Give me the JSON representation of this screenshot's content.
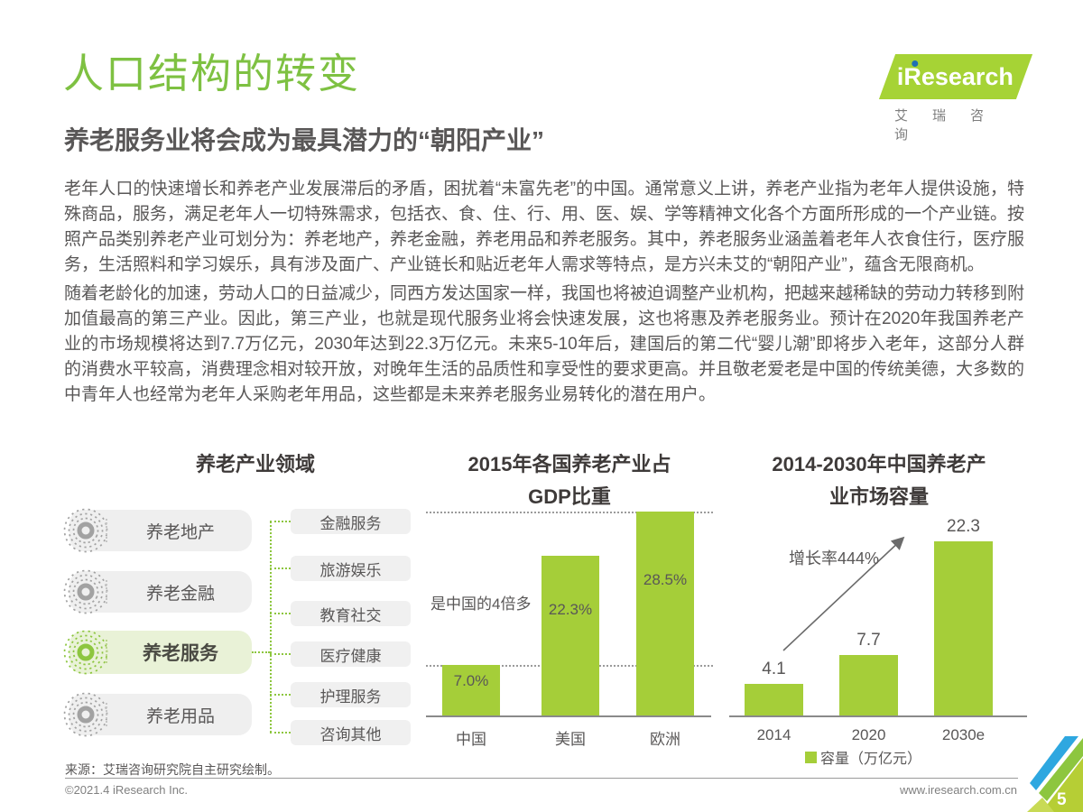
{
  "page": {
    "title": "人口结构的转变",
    "subtitle": "养老服务业将会成为最具潜力的“朝阳产业”",
    "paragraphs": [
      "老年人口的快速增长和养老产业发展滞后的矛盾，困扰着“未富先老”的中国。通常意义上讲，养老产业指为老年人提供设施，特殊商品，服务，满足老年人一切特殊需求，包括衣、食、住、行、用、医、娱、学等精神文化各个方面所形成的一个产业链。按照产品类别养老产业可划分为：养老地产，养老金融，养老用品和养老服务。其中，养老服务业涵盖着老年人衣食住行，医疗服务，生活照料和学习娱乐，具有涉及面广、产业链长和贴近老年人需求等特点，是方兴未艾的“朝阳产业”，蕴含无限商机。",
      "随着老龄化的加速，劳动人口的日益减少，同西方发达国家一样，我国也将被迫调整产业机构，把越来越稀缺的劳动力转移到附加值最高的第三产业。因此，第三产业，也就是现代服务业将会快速发展，这也将惠及养老服务业。预计在2020年我国养老产业的市场规模将达到7.7万亿元，2030年达到22.3万亿元。未来5-10年后，建国后的第二代“婴儿潮”即将步入老年，这部分人群的消费水平较高，消费理念相对较开放，对晚年生活的品质性和享受性的要求更高。并且敬老爱老是中国的传统美德，大多数的中青年人也经常为老年人采购老年用品，这些都是未来养老服务业易转化的潜在用户。"
    ],
    "logo": {
      "brand": "iResearch",
      "brand_cn": "艾瑞咨询"
    },
    "footer": {
      "source": "来源：艾瑞咨询研究院自主研究绘制。",
      "copyright": "©2021.4 iResearch Inc.",
      "website": "www.iresearch.com.cn",
      "page_number": "5"
    }
  },
  "diagram": {
    "title": "养老产业领域",
    "categories": [
      {
        "label": "养老地产",
        "highlighted": false
      },
      {
        "label": "养老金融",
        "highlighted": false
      },
      {
        "label": "养老服务",
        "highlighted": true
      },
      {
        "label": "养老用品",
        "highlighted": false
      }
    ],
    "subcategories": [
      "金融服务",
      "旅游娱乐",
      "教育社交",
      "医疗健康",
      "护理服务",
      "咨询其他"
    ]
  },
  "chart_data": [
    {
      "type": "bar",
      "title": "2015年各国养老产业占GDP比重",
      "title_lines": [
        "2015年各国养老产业占",
        "GDP比重"
      ],
      "categories": [
        "中国",
        "美国",
        "欧洲"
      ],
      "values": [
        7.0,
        22.3,
        28.5
      ],
      "value_labels": [
        "7.0%",
        "22.3%",
        "28.5%"
      ],
      "annotation": "是中国的4倍多",
      "unit": "%",
      "ylim": [
        0,
        28.5
      ],
      "gridlines_at": [
        7.0,
        28.5
      ],
      "bar_color": "#a5ce39"
    },
    {
      "type": "bar",
      "title": "2014-2030年中国养老产业市场容量",
      "title_lines": [
        "2014-2030年中国养老产",
        "业市场容量"
      ],
      "categories": [
        "2014",
        "2020",
        "2030e"
      ],
      "values": [
        4.1,
        7.7,
        22.3
      ],
      "value_labels": [
        "4.1",
        "7.7",
        "22.3"
      ],
      "annotation": "增长率444%",
      "legend": "容量（万亿元）",
      "unit": "万亿元",
      "ylim": [
        0,
        23
      ],
      "bar_color": "#a5ce39"
    }
  ],
  "colors": {
    "title_green": "#7ec142",
    "logo_green": "#a6d335",
    "bar_green": "#a5ce39",
    "connector_green": "#8dc63f",
    "highlight_pill_bg": "#e9f2d7",
    "pill_bg": "#efefef",
    "text_dark": "#595757",
    "chart_title": "#3e3a39",
    "corner_blue": "#2ea7e0"
  }
}
